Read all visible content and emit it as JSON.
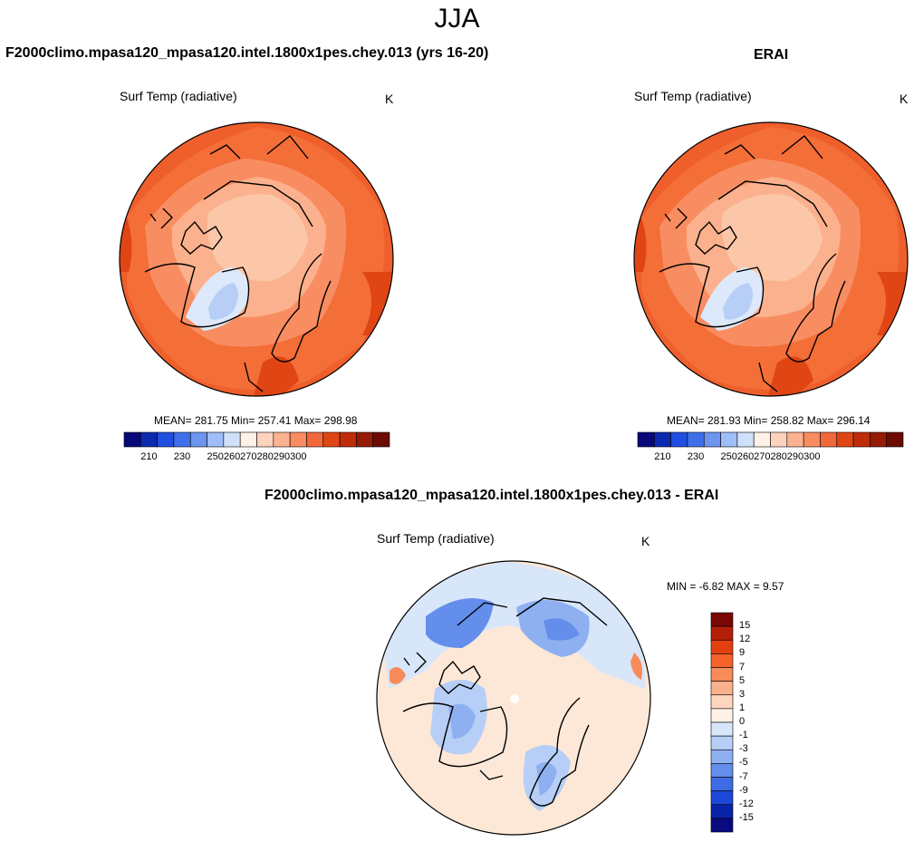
{
  "title": "JJA",
  "panels": [
    {
      "title": "F2000climo.mpasa120_mpasa120.intel.1800x1pes.chey.013 (yrs 16-20)",
      "variable": "Surf Temp (radiative)",
      "units": "K",
      "stats": "MEAN= 281.75  Min= 257.41  Max= 298.98"
    },
    {
      "title": "ERAI",
      "variable": "Surf Temp (radiative)",
      "units": "K",
      "stats": "MEAN= 281.93  Min= 258.82  Max= 296.14"
    },
    {
      "title": "F2000climo.mpasa120_mpasa120.intel.1800x1pes.chey.013 - ERAI",
      "variable": "Surf Temp (radiative)",
      "units": "K",
      "stats": "MIN =  -6.82 MAX =   9.57"
    }
  ],
  "colorbar_abs": {
    "tick_labels": [
      "210",
      "230",
      "250",
      "260",
      "270",
      "280",
      "290",
      "300"
    ],
    "colors": [
      "#08087a",
      "#0b2ab0",
      "#1f4fe0",
      "#3f6fea",
      "#6d95f0",
      "#9fbdf6",
      "#cfe0fa",
      "#fff1e8",
      "#fdd3be",
      "#fbb290",
      "#f98c62",
      "#f2683b",
      "#e04514",
      "#c02c0a",
      "#961b06",
      "#6b0b02"
    ]
  },
  "colorbar_diff": {
    "tick_labels": [
      "15",
      "12",
      "9",
      "7",
      "5",
      "3",
      "1",
      "0",
      "-1",
      "-3",
      "-5",
      "-7",
      "-9",
      "-12",
      "-15"
    ],
    "colors": [
      "#7a0703",
      "#b51f08",
      "#e4400f",
      "#f5622a",
      "#f98a5a",
      "#fbb18c",
      "#fdd6bd",
      "#fff1e6",
      "#d8e6fa",
      "#b7cff6",
      "#8eb0f1",
      "#648eec",
      "#3d6ce6",
      "#1d47d8",
      "#0a22a8",
      "#080a80"
    ]
  },
  "colors": {
    "ocean_warm": "#ec5a28",
    "arctic_mild": "#fbc7a8",
    "greenland_cold": "#cfe0f8",
    "diff_neutral": "#fde8d8",
    "diff_cold": "#5f8cea",
    "coastline": "#000000"
  }
}
